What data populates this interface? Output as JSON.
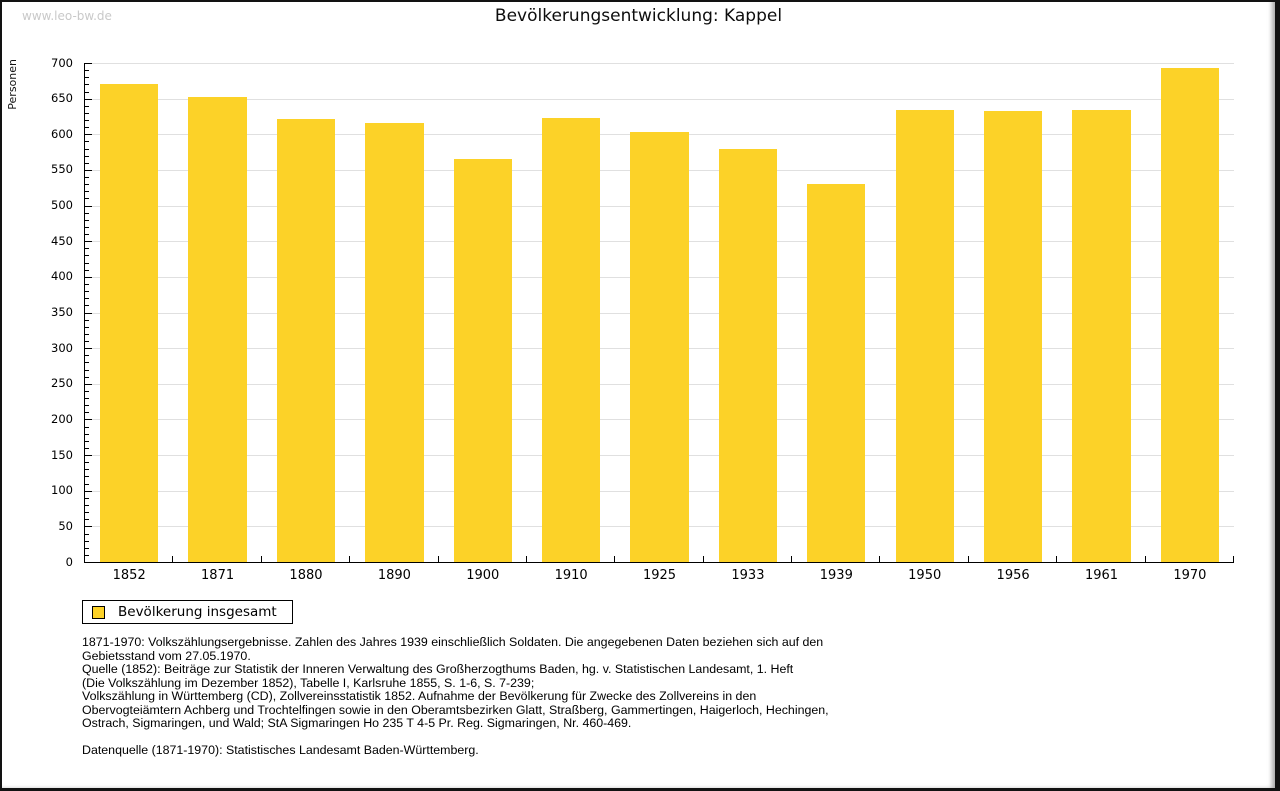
{
  "watermark": "www.leo-bw.de",
  "title": "Bevölkerungsentwicklung: Kappel",
  "legend": {
    "label": "Bevölkerung insgesamt"
  },
  "colors": {
    "bar": "#fcd228",
    "grid": "#e0e0e0",
    "axis": "#000000",
    "watermark": "#c9c9c9"
  },
  "chart_data": {
    "type": "bar",
    "title": "Bevölkerungsentwicklung: Kappel",
    "series_name": "Bevölkerung insgesamt",
    "categories": [
      "1852",
      "1871",
      "1880",
      "1890",
      "1900",
      "1910",
      "1925",
      "1933",
      "1939",
      "1950",
      "1956",
      "1961",
      "1970"
    ],
    "values": [
      670,
      653,
      622,
      616,
      566,
      623,
      603,
      579,
      530,
      634,
      633,
      634,
      693
    ],
    "xlabel": "",
    "ylabel": "Personen",
    "ylim": [
      0,
      700
    ],
    "ytick_major": 50,
    "ytick_minor": 10,
    "grid": true,
    "legend_position": "bottom-left",
    "bar_color": "#fcd228"
  },
  "footnotes": [
    "1871-1970: Volkszählungsergebnisse. Zahlen des Jahres 1939 einschließlich Soldaten. Die angegebenen Daten beziehen sich auf den",
    "Gebietsstand vom 27.05.1970.",
    "Quelle (1852): Beiträge zur Statistik der Inneren Verwaltung des Großherzogthums Baden, hg. v. Statistischen Landesamt, 1. Heft",
    "(Die Volkszählung im Dezember 1852), Tabelle I, Karlsruhe 1855, S. 1-6, S. 7-239;",
    "Volkszählung in Württemberg (CD), Zollvereinsstatistik 1852. Aufnahme der Bevölkerung für Zwecke des Zollvereins in den",
    "Obervogteiämtern Achberg und Trochtelfingen sowie in den Oberamtsbezirken Glatt, Straßberg, Gammertingen, Haigerloch, Hechingen,",
    "Ostrach, Sigmaringen, und Wald; StA Sigmaringen Ho 235 T 4-5 Pr. Reg. Sigmaringen, Nr. 460-469.",
    "",
    "Datenquelle (1871-1970): Statistisches Landesamt Baden-Württemberg."
  ]
}
